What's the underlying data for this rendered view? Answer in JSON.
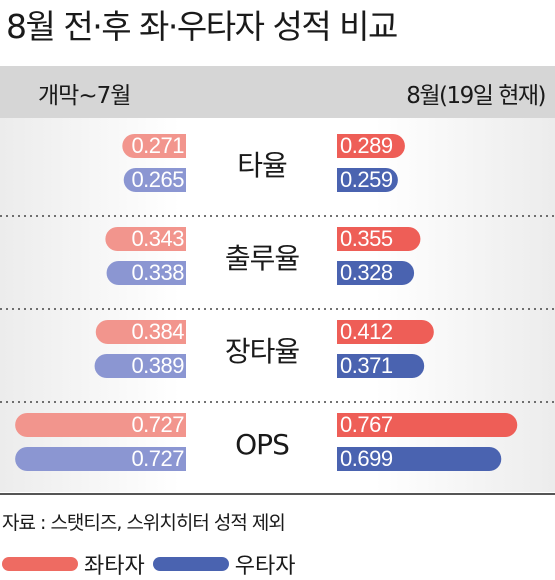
{
  "title": "8월 전·후 좌·우타자 성적 비교",
  "periods": {
    "left": "개막~7월",
    "right": "8월(19일 현재)"
  },
  "source": "자료 : 스탯티즈, 스위치히터 성적 제외",
  "legend": [
    {
      "label": "좌타자",
      "color": "#ee6b62"
    },
    {
      "label": "우타자",
      "color": "#4a63b0"
    }
  ],
  "colors": {
    "left_before": "#f2958d",
    "right_before": "#8b96d2",
    "left_after": "#ee5e57",
    "right_after": "#4a63b0"
  },
  "chart_data": {
    "type": "bar",
    "title": "8월 전·후 좌·우타자 성적 비교",
    "categories": [
      "타율",
      "출루율",
      "장타율",
      "OPS"
    ],
    "series": [
      {
        "name": "좌타자",
        "period": "개막~7월",
        "values": [
          0.271,
          0.343,
          0.384,
          0.727
        ],
        "labels": [
          "0.271",
          "0.343",
          "0.384",
          "0.727"
        ]
      },
      {
        "name": "우타자",
        "period": "개막~7월",
        "values": [
          0.265,
          0.338,
          0.389,
          0.727
        ],
        "labels": [
          "0.265",
          "0.338",
          "0.389",
          "0.727"
        ]
      },
      {
        "name": "좌타자",
        "period": "8월(19일 현재)",
        "values": [
          0.289,
          0.355,
          0.412,
          0.767
        ],
        "labels": [
          "0.289",
          "0.355",
          "0.412",
          "0.767"
        ]
      },
      {
        "name": "우타자",
        "period": "8월(19일 현재)",
        "values": [
          0.259,
          0.328,
          0.371,
          0.699
        ],
        "labels": [
          "0.259",
          "0.328",
          "0.371",
          "0.699"
        ]
      }
    ],
    "legend_position": "bottom-left"
  }
}
